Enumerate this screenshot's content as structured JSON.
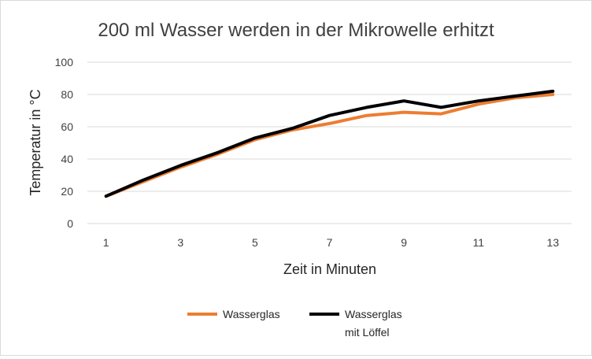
{
  "chart_data": {
    "type": "line",
    "title": "200 ml Wasser werden in der Mikrowelle erhitzt",
    "xlabel": "Zeit in Minuten",
    "ylabel": "Temperatur in °C",
    "x": [
      1,
      2,
      3,
      4,
      5,
      6,
      7,
      8,
      9,
      10,
      11,
      12,
      13
    ],
    "x_tick_labels": [
      "1",
      "3",
      "5",
      "7",
      "9",
      "11",
      "13"
    ],
    "x_tick_values": [
      1,
      3,
      5,
      7,
      9,
      11,
      13
    ],
    "ylim": [
      0,
      100
    ],
    "y_ticks": [
      0,
      20,
      40,
      60,
      80,
      100
    ],
    "grid": "horizontal",
    "legend_position": "bottom",
    "series": [
      {
        "name": "Wasserglas",
        "color": "#ed7d31",
        "values": [
          17,
          26,
          35,
          43,
          52,
          58,
          62,
          67,
          69,
          68,
          74,
          78,
          80
        ]
      },
      {
        "name_lines": [
          "Wasserglas",
          "mit Löffel"
        ],
        "color": "#000000",
        "values": [
          17,
          27,
          36,
          44,
          53,
          59,
          67,
          72,
          76,
          72,
          76,
          79,
          82
        ]
      }
    ]
  }
}
